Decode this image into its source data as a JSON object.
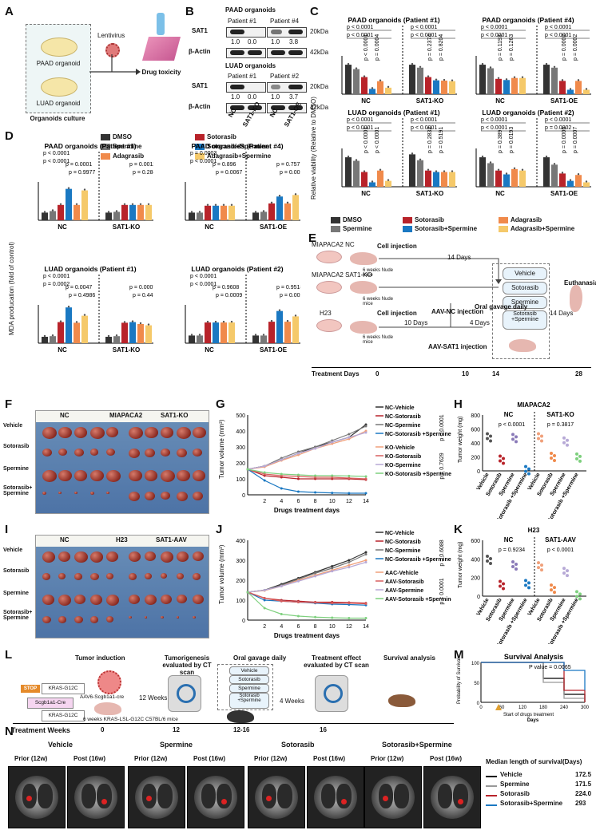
{
  "panels": {
    "A": "A",
    "B": "B",
    "C": "C",
    "D": "D",
    "E": "E",
    "F": "F",
    "G": "G",
    "H": "H",
    "I": "I",
    "J": "J",
    "K": "K",
    "L": "L",
    "M": "M",
    "N": "N"
  },
  "colors": {
    "dmso": "#333333",
    "spermine": "#777777",
    "sotorasib": "#b8232a",
    "adagrasib": "#f08a4b",
    "soto_sperm": "#1a78c2",
    "adag_sperm": "#f5c96a"
  },
  "panelA": {
    "paad": "PAAD organoid",
    "luad": "LUAD organoid",
    "lentivirus": "Lentivirus",
    "culture": "Organoids culture",
    "drug": "Drug toxicity"
  },
  "panelB": {
    "top_title": "PAAD organoids",
    "top_p1": "Patient #1",
    "top_p4": "Patient #4",
    "bot_title": "LUAD organoids",
    "bot_p1": "Patient #1",
    "bot_p2": "Patient #2",
    "sat1": "SAT1",
    "actin": "β-Actin",
    "kda20": "20kDa",
    "kda42": "42kDa",
    "q_top": [
      "1.0",
      "0.0",
      "1.0",
      "3.8"
    ],
    "q_bot": [
      "1.0",
      "0.0",
      "1.0",
      "3.7"
    ],
    "x_nc1": "NC",
    "x_ko": "SAT1-KO",
    "x_nc2": "NC",
    "x_oe": "SAT1-OE"
  },
  "legend1": {
    "dmso": "DMSO",
    "sotorasib": "Sotorasib",
    "spermine": "Spermine",
    "soto_sperm": "Sotorasib+Spermine",
    "adagrasib": "Adagrasib",
    "adag_sperm": "Adagrasib+Spermine"
  },
  "panelC": {
    "ylabel": "Relative viability (Relative to DMSO)",
    "plots": [
      {
        "title": "PAAD organoids (Patient #1)",
        "g1": "NC",
        "g2": "SAT1-KO",
        "p": [
          "p < 0.0001",
          "p < 0.0001",
          "p < 0.0001",
          "p = 0.0004",
          "p < 0.0001",
          "p < 0.0001",
          "p = 0.2374",
          "p = 0.8204"
        ]
      },
      {
        "title": "PAAD organoids (Patient #4)",
        "g1": "NC",
        "g2": "SAT1-OE",
        "p": [
          "p < 0.0001",
          "p < 0.0001",
          "p = 0.1193",
          "p = 0.1263",
          "p < 0.0001",
          "p < 0.0001",
          "p = 0.0002",
          "p = 0.0002"
        ]
      },
      {
        "title": "LUAD organoids (Patient #1)",
        "g1": "NC",
        "g2": "SAT1-KO",
        "p": [
          "p < 0.0001",
          "p < 0.0001",
          "p < 0.0001",
          "p < 0.0001",
          "p < 0.0001",
          "p < 0.0001",
          "p = 0.2832",
          "p = 0.5191"
        ]
      },
      {
        "title": "LUAD organoids (Patient #2)",
        "g1": "NC",
        "g2": "SAT1-OE",
        "p": [
          "p < 0.0001",
          "p < 0.0001",
          "p = 0.389",
          "p = 0.0193",
          "p < 0.0001",
          "p = 0.0002",
          "p = 0.0005",
          "p = 0.0007"
        ]
      }
    ]
  },
  "panelD": {
    "ylabel": "MDA producation (fold of control)",
    "plots": [
      {
        "title": "PAAD organoids (Patient #1)",
        "g1": "NC",
        "g2": "SAT1-KO",
        "p": [
          "p < 0.0001",
          "p < 0.0001",
          "p = 0.0001",
          "p = 0.0011",
          "p = 0.9977",
          "p = 0.2844"
        ]
      },
      {
        "title": "PAAD organoids (Patient #4)",
        "g1": "NC",
        "g2": "SAT1-OE",
        "p": [
          "p = 0.0003",
          "p < 0.0001",
          "p = 0.896",
          "p = 0.7577",
          "p = 0.0067",
          "p = 0.0026"
        ]
      },
      {
        "title": "LUAD organoids (Patient #1)",
        "g1": "NC",
        "g2": "SAT1-KO",
        "p": [
          "p < 0.0001",
          "p = 0.0002",
          "p = 0.0047",
          "p = 0.0007",
          "p = 0.4986",
          "p = 0.4417"
        ]
      },
      {
        "title": "LUAD organoids (Patient #2)",
        "g1": "NC",
        "g2": "SAT1-OE",
        "p": [
          "p < 0.0001",
          "p < 0.0001",
          "p = 0.9608",
          "p = 0.9518",
          "p = 0.0009",
          "p = 0.0023"
        ]
      }
    ]
  },
  "legend2": {
    "dmso": "DMSO",
    "sotorasib": "Sotorasib",
    "adagrasib": "Adagrasib",
    "spermine": "Spermine",
    "soto_sperm": "Sotorasib+Spermine",
    "adag_sperm": "Adagrasib+Spermine"
  },
  "panelE": {
    "mia_nc": "MIAPACA2 NC",
    "mia_ko": "MIAPACA2 SAT1-KO",
    "h23": "H23",
    "cell_inj": "Cell injection",
    "cell_inj2": "Cell injection",
    "mice": "6 weeks Nude mice",
    "days14": "14 Days",
    "days10": "10 Days",
    "days4": "4 Days",
    "days14b": "14 Days",
    "aav_nc": "AAV-NC injection",
    "aav_sat1": "AAV-SAT1 injection",
    "gavage": "Oral gavage daily",
    "euth": "Euthanasia",
    "drugs": [
      "Vehicle",
      "Sotorasib",
      "Spermine",
      "Sotorasib +Spermine"
    ],
    "axis": "Treatment Days",
    "ticks": [
      "0",
      "10",
      "14",
      "28"
    ]
  },
  "panelF": {
    "nc": "NC",
    "title": "MIAPACA2",
    "ko": "SAT1-KO",
    "rows": [
      "Vehicle",
      "Sotorasib",
      "Spermine",
      "Sotorasib+ Spermine"
    ]
  },
  "panelI": {
    "nc": "NC",
    "title": "H23",
    "ko": "SAT1-AAV",
    "rows": [
      "Vehicle",
      "Sotorasib",
      "Spermine",
      "Sotorasib+ Spermine"
    ]
  },
  "chart_data": [
    {
      "type": "line",
      "id": "G",
      "title": "",
      "xlabel": "Drugs treatment days",
      "ylabel": "Tumor volume (mm³)",
      "ylim": [
        0,
        500
      ],
      "x": [
        0,
        2,
        4,
        6,
        8,
        10,
        12,
        14
      ],
      "series": [
        {
          "name": "NC-Vehicle",
          "values": [
            160,
            180,
            220,
            260,
            300,
            330,
            360,
            440
          ]
        },
        {
          "name": "NC-Sotorasib",
          "values": [
            160,
            120,
            110,
            100,
            100,
            100,
            100,
            95
          ]
        },
        {
          "name": "NC-Spermine",
          "values": [
            160,
            180,
            230,
            270,
            300,
            340,
            380,
            430
          ]
        },
        {
          "name": "NC-Sotorasib +Spermine",
          "values": [
            160,
            90,
            40,
            20,
            15,
            12,
            10,
            10
          ]
        },
        {
          "name": "KO-Vehicle",
          "values": [
            160,
            175,
            215,
            250,
            290,
            320,
            350,
            400
          ]
        },
        {
          "name": "KO-Sotorasib",
          "values": [
            160,
            130,
            120,
            115,
            110,
            110,
            105,
            100
          ]
        },
        {
          "name": "KO-Spermine",
          "values": [
            160,
            180,
            220,
            260,
            290,
            330,
            360,
            390
          ]
        },
        {
          "name": "KO-Sotorasib +Spermine",
          "values": [
            160,
            140,
            130,
            125,
            120,
            120,
            118,
            115
          ]
        }
      ],
      "p": [
        "p < 0.0001",
        "p = 0.7629"
      ]
    },
    {
      "type": "line",
      "id": "J",
      "title": "",
      "xlabel": "Drugs treatment days",
      "ylabel": "Tumor volume (mm³)",
      "ylim": [
        0,
        400
      ],
      "x": [
        0,
        2,
        4,
        6,
        8,
        10,
        12,
        14
      ],
      "series": [
        {
          "name": "NC-Vehicle",
          "values": [
            140,
            150,
            180,
            210,
            240,
            270,
            300,
            340
          ]
        },
        {
          "name": "NC-Sotorasib",
          "values": [
            140,
            110,
            100,
            95,
            90,
            90,
            88,
            85
          ]
        },
        {
          "name": "NC-Spermine",
          "values": [
            140,
            150,
            175,
            205,
            235,
            260,
            290,
            330
          ]
        },
        {
          "name": "NC-Sotorasib +Spermine",
          "values": [
            140,
            100,
            95,
            90,
            85,
            80,
            78,
            75
          ]
        },
        {
          "name": "AAC-Vehicle",
          "values": [
            140,
            148,
            170,
            200,
            225,
            250,
            275,
            300
          ]
        },
        {
          "name": "AAV-Sotorasib",
          "values": [
            140,
            110,
            95,
            90,
            88,
            85,
            85,
            82
          ]
        },
        {
          "name": "AAV-Spermine",
          "values": [
            140,
            150,
            170,
            195,
            220,
            245,
            265,
            290
          ]
        },
        {
          "name": "AAV-Sotorasib +Spermine",
          "values": [
            140,
            60,
            30,
            20,
            15,
            12,
            10,
            10
          ]
        }
      ],
      "p": [
        "p = 0.6088",
        "p < 0.0001"
      ]
    },
    {
      "type": "scatter",
      "id": "H",
      "title": "MIAPACA2",
      "ylabel": "Tumor weight (mg)",
      "ylim": [
        0,
        800
      ],
      "groups": [
        "NC",
        "SAT1-KO"
      ],
      "categories": [
        "Vehicle",
        "Sotorasib",
        "Spermine",
        "Sotorasib +Spermine",
        "Vehicle",
        "Sotorasib",
        "Spermine",
        "Sotorasib +Spermine"
      ],
      "values": [
        480,
        160,
        470,
        10,
        480,
        200,
        420,
        190
      ],
      "p": [
        "p < 0.0001",
        "p = 0.3817"
      ]
    },
    {
      "type": "scatter",
      "id": "K",
      "title": "H23",
      "ylabel": "Tumor weight (mg)",
      "ylim": [
        0,
        600
      ],
      "groups": [
        "NC",
        "SAT1-AAV"
      ],
      "categories": [
        "Vehicle",
        "Sotorasib",
        "Spermine",
        "Sotorasib +Spermine",
        "Vehicle",
        "Sotorasib",
        "Spermine",
        "Sotorasib +Spermine"
      ],
      "values": [
        390,
        120,
        330,
        130,
        320,
        80,
        260,
        10
      ],
      "p": [
        "p = 0.9234",
        "p < 0.0001"
      ]
    },
    {
      "type": "line",
      "id": "M",
      "title": "Survival Analysis",
      "xlabel": "Days",
      "ylabel": "Probability of Survival",
      "ylim": [
        0,
        100
      ],
      "xticks": [
        "0",
        "60",
        "120",
        "180",
        "240",
        "300"
      ],
      "series": [
        {
          "name": "Vehicle",
          "values": [
            100,
            100,
            100,
            60,
            20,
            0
          ]
        },
        {
          "name": "Spermine",
          "values": [
            100,
            100,
            100,
            50,
            10,
            0
          ]
        },
        {
          "name": "Sotorasib",
          "values": [
            100,
            100,
            100,
            100,
            30,
            0
          ]
        },
        {
          "name": "Sotorasib+Spermine",
          "values": [
            100,
            100,
            100,
            100,
            80,
            30
          ]
        }
      ],
      "pvalue": "P value = 0.0065",
      "marker": "Start of drugs treatment"
    }
  ],
  "panelL": {
    "induction": "Tumor induction",
    "tumorigenesis": "Tumorigenesis evaluated by CT scan",
    "gavage": "Oral gavage daily",
    "effect": "Treatment effect evaluated by CT scan",
    "survival": "Survival analysis",
    "stop": "STOP",
    "kras1": "KRAS-G12C",
    "kras2": "KRAS-G12C",
    "scgb": "Scgb1a1-Cre",
    "aav": "AAV6-Scgb1a1-cre",
    "weeks12": "12 Weeks",
    "weeks4": "4 Weeks",
    "mice": "6 weeks KRAS-LSL-G12C C57BL/6 mice",
    "drugs": [
      "Vehicle",
      "Sotorasib",
      "Spermine",
      "Sotorasib +Spermine"
    ],
    "axis": "Treatment Weeks",
    "ticks": [
      "0",
      "12",
      "12-16",
      "16"
    ]
  },
  "panelN": {
    "groups": [
      "Vehicle",
      "Spermine",
      "Sotorasib",
      "Sotorasib+Spermine"
    ],
    "prior": "Prior (12w)",
    "post": "Post (16w)",
    "median_title": "Median length of survival(Days)",
    "median": [
      {
        "name": "Vehicle",
        "val": "172.5"
      },
      {
        "name": "Spermine",
        "val": "171.5"
      },
      {
        "name": "Sotorasib",
        "val": "224.0"
      },
      {
        "name": "Sotorasib+Spermine",
        "val": "293"
      }
    ]
  }
}
